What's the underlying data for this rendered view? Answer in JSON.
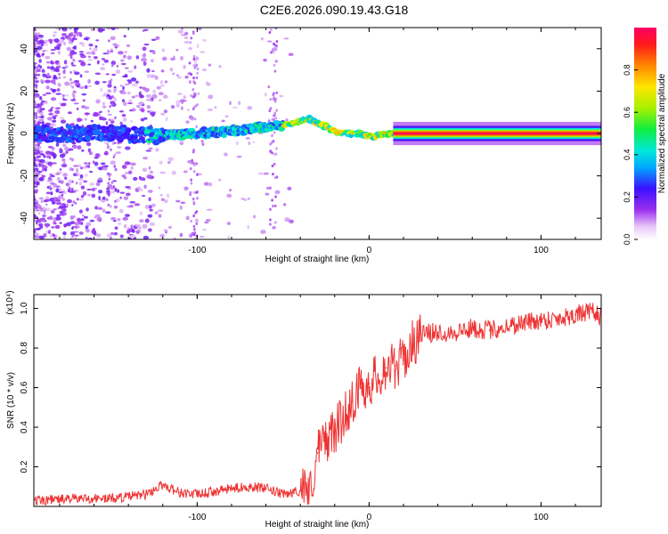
{
  "page_title": "C2E6.2026.090.19.43.G18",
  "colors": {
    "snr_line": "#ee3333",
    "frame": "#000000",
    "background": "#ffffff"
  },
  "chart_data": [
    {
      "type": "heatmap",
      "title": "C2E6.2026.090.19.43.G18",
      "xlabel": "Height of straight line (km)",
      "ylabel": "Frequency (Hz)",
      "xlim": [
        -195,
        135
      ],
      "ylim": [
        -50,
        50
      ],
      "xticks": [
        -100,
        0,
        100
      ],
      "xtick_labels": [
        "-100",
        "0",
        "100"
      ],
      "yticks": [
        -40,
        -20,
        0,
        20,
        40
      ],
      "ytick_labels": [
        "-40",
        "-20",
        "0",
        "20",
        "40"
      ],
      "colorbar": {
        "label": "Normalized spectral amplitude",
        "range": [
          0,
          1
        ],
        "ticks": [
          0.0,
          0.2,
          0.4,
          0.6,
          0.8
        ],
        "tick_labels": [
          "0.0",
          "0.2",
          "0.4",
          "0.6",
          "0.8"
        ]
      },
      "ridge": {
        "description_x": [
          -195,
          -150,
          -120,
          -100,
          -80,
          -60,
          -50,
          -40,
          -35,
          -30,
          -25,
          -20,
          -15,
          -10,
          -5,
          0,
          3,
          6,
          9,
          12,
          15,
          20,
          60,
          100,
          135
        ],
        "frequency_hz": [
          0,
          0,
          -1,
          0,
          1,
          3,
          4,
          6,
          7,
          5,
          3,
          1,
          0,
          0,
          0,
          -1,
          -2,
          0,
          -1,
          0,
          0,
          0,
          0,
          0,
          0
        ]
      }
    },
    {
      "type": "line",
      "title": "",
      "xlabel": "Height of straight line (km)",
      "ylabel": "SNR (10 * v/v)",
      "scale_label": "(x10⁴)",
      "xlim": [
        -195,
        135
      ],
      "ylim": [
        0,
        1.07
      ],
      "xticks": [
        -100,
        0,
        100
      ],
      "xtick_labels": [
        "-100",
        "0",
        "100"
      ],
      "yticks": [
        0.2,
        0.4,
        0.6,
        0.8,
        1.0
      ],
      "ytick_labels": [
        "0.2",
        "0.4",
        "0.6",
        "0.8",
        "1.0"
      ],
      "series": [
        {
          "name": "SNR",
          "x": [
            -195,
            -170,
            -150,
            -130,
            -120,
            -110,
            -100,
            -80,
            -70,
            -60,
            -50,
            -45,
            -40,
            -37,
            -35,
            -30,
            -25,
            -20,
            -15,
            -10,
            -5,
            0,
            5,
            10,
            15,
            20,
            25,
            30,
            40,
            50,
            60,
            70,
            80,
            90,
            100,
            110,
            120,
            130,
            135
          ],
          "values": [
            0.03,
            0.04,
            0.04,
            0.06,
            0.11,
            0.07,
            0.06,
            0.09,
            0.1,
            0.09,
            0.06,
            0.07,
            0.08,
            0.12,
            0.04,
            0.27,
            0.34,
            0.38,
            0.45,
            0.53,
            0.6,
            0.62,
            0.66,
            0.7,
            0.71,
            0.74,
            0.82,
            0.87,
            0.88,
            0.88,
            0.9,
            0.89,
            0.91,
            0.93,
            0.94,
            0.95,
            0.97,
            0.98,
            0.96
          ]
        }
      ]
    }
  ]
}
